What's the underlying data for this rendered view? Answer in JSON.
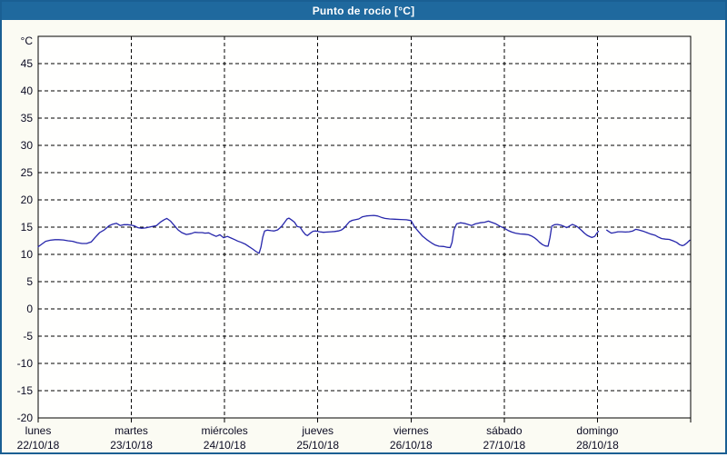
{
  "window": {
    "title": "Punto de rocío [°C]"
  },
  "colors": {
    "frame": "#1a5f93",
    "titlebar_bg": "#1f699e",
    "title_text": "#ffffff",
    "page_bg": "#fbfbf3",
    "plot_bg": "#fffffe",
    "grid": "#000000",
    "axis_text": "#0b0b22",
    "line": "#2626ab"
  },
  "chart_data": {
    "type": "line",
    "title": "Punto de rocío [°C]",
    "unit_label": "°C",
    "ylim": [
      -20,
      50
    ],
    "yticks": [
      45,
      40,
      35,
      30,
      25,
      20,
      15,
      10,
      5,
      0,
      -5,
      -10,
      -15,
      -20
    ],
    "grid": "dashed",
    "legend": "none",
    "x_axis_days": [
      {
        "name": "lunes",
        "date": "22/10/18"
      },
      {
        "name": "martes",
        "date": "23/10/18"
      },
      {
        "name": "miércoles",
        "date": "24/10/18"
      },
      {
        "name": "jueves",
        "date": "25/10/18"
      },
      {
        "name": "viernes",
        "date": "26/10/18"
      },
      {
        "name": "sábado",
        "date": "27/10/18"
      },
      {
        "name": "domingo",
        "date": "28/10/18"
      }
    ],
    "series": [
      {
        "name": "Punto de rocío",
        "x_unit": "days_from_start",
        "points": [
          [
            0.0,
            11.4
          ],
          [
            0.04,
            11.9
          ],
          [
            0.08,
            12.4
          ],
          [
            0.13,
            12.6
          ],
          [
            0.18,
            12.7
          ],
          [
            0.22,
            12.7
          ],
          [
            0.27,
            12.65
          ],
          [
            0.32,
            12.5
          ],
          [
            0.37,
            12.4
          ],
          [
            0.42,
            12.15
          ],
          [
            0.47,
            12.0
          ],
          [
            0.52,
            12.0
          ],
          [
            0.57,
            12.3
          ],
          [
            0.61,
            13.1
          ],
          [
            0.66,
            14.0
          ],
          [
            0.71,
            14.5
          ],
          [
            0.76,
            15.25
          ],
          [
            0.8,
            15.55
          ],
          [
            0.84,
            15.7
          ],
          [
            0.88,
            15.3
          ],
          [
            0.92,
            15.45
          ],
          [
            0.96,
            15.45
          ],
          [
            1.0,
            15.35
          ],
          [
            1.03,
            15.25
          ],
          [
            1.07,
            14.9
          ],
          [
            1.11,
            14.8
          ],
          [
            1.15,
            14.85
          ],
          [
            1.19,
            15.0
          ],
          [
            1.23,
            15.15
          ],
          [
            1.27,
            15.3
          ],
          [
            1.31,
            15.9
          ],
          [
            1.35,
            16.35
          ],
          [
            1.38,
            16.6
          ],
          [
            1.42,
            16.1
          ],
          [
            1.46,
            15.3
          ],
          [
            1.5,
            14.5
          ],
          [
            1.54,
            14.0
          ],
          [
            1.59,
            13.65
          ],
          [
            1.64,
            13.8
          ],
          [
            1.68,
            14.05
          ],
          [
            1.72,
            14.0
          ],
          [
            1.76,
            14.0
          ],
          [
            1.79,
            13.9
          ],
          [
            1.83,
            13.95
          ],
          [
            1.87,
            13.6
          ],
          [
            1.91,
            13.3
          ],
          [
            1.95,
            13.6
          ],
          [
            1.99,
            13.05
          ],
          [
            2.03,
            13.3
          ],
          [
            2.07,
            13.0
          ],
          [
            2.11,
            12.7
          ],
          [
            2.14,
            12.45
          ],
          [
            2.18,
            12.2
          ],
          [
            2.22,
            11.9
          ],
          [
            2.26,
            11.45
          ],
          [
            2.3,
            11.0
          ],
          [
            2.34,
            10.5
          ],
          [
            2.37,
            10.2
          ],
          [
            2.39,
            11.3
          ],
          [
            2.41,
            13.2
          ],
          [
            2.43,
            14.3
          ],
          [
            2.46,
            14.45
          ],
          [
            2.5,
            14.35
          ],
          [
            2.53,
            14.3
          ],
          [
            2.57,
            14.5
          ],
          [
            2.61,
            15.1
          ],
          [
            2.64,
            15.8
          ],
          [
            2.67,
            16.5
          ],
          [
            2.69,
            16.65
          ],
          [
            2.72,
            16.3
          ],
          [
            2.75,
            15.9
          ],
          [
            2.78,
            15.1
          ],
          [
            2.81,
            15.0
          ],
          [
            2.84,
            14.2
          ],
          [
            2.87,
            13.6
          ],
          [
            2.89,
            13.45
          ],
          [
            2.92,
            13.9
          ],
          [
            2.95,
            14.25
          ],
          [
            2.98,
            14.3
          ],
          [
            3.02,
            14.15
          ],
          [
            3.06,
            14.05
          ],
          [
            3.1,
            14.1
          ],
          [
            3.14,
            14.15
          ],
          [
            3.18,
            14.2
          ],
          [
            3.22,
            14.3
          ],
          [
            3.25,
            14.45
          ],
          [
            3.28,
            14.8
          ],
          [
            3.31,
            15.4
          ],
          [
            3.34,
            16.0
          ],
          [
            3.37,
            16.25
          ],
          [
            3.4,
            16.35
          ],
          [
            3.44,
            16.5
          ],
          [
            3.48,
            16.9
          ],
          [
            3.52,
            17.05
          ],
          [
            3.56,
            17.1
          ],
          [
            3.6,
            17.15
          ],
          [
            3.64,
            17.05
          ],
          [
            3.68,
            16.8
          ],
          [
            3.72,
            16.6
          ],
          [
            3.77,
            16.5
          ],
          [
            3.83,
            16.45
          ],
          [
            3.89,
            16.4
          ],
          [
            3.95,
            16.35
          ],
          [
            4.0,
            16.2
          ],
          [
            4.04,
            15.0
          ],
          [
            4.08,
            14.2
          ],
          [
            4.12,
            13.4
          ],
          [
            4.17,
            12.7
          ],
          [
            4.22,
            12.1
          ],
          [
            4.26,
            11.7
          ],
          [
            4.3,
            11.5
          ],
          [
            4.35,
            11.45
          ],
          [
            4.39,
            11.3
          ],
          [
            4.42,
            11.25
          ],
          [
            4.44,
            12.2
          ],
          [
            4.46,
            14.5
          ],
          [
            4.49,
            15.6
          ],
          [
            4.53,
            15.8
          ],
          [
            4.57,
            15.7
          ],
          [
            4.61,
            15.5
          ],
          [
            4.65,
            15.3
          ],
          [
            4.69,
            15.6
          ],
          [
            4.74,
            15.8
          ],
          [
            4.79,
            15.9
          ],
          [
            4.83,
            16.1
          ],
          [
            4.87,
            15.85
          ],
          [
            4.91,
            15.6
          ],
          [
            4.95,
            15.2
          ],
          [
            5.0,
            14.8
          ],
          [
            5.04,
            14.4
          ],
          [
            5.08,
            14.1
          ],
          [
            5.12,
            13.9
          ],
          [
            5.17,
            13.75
          ],
          [
            5.22,
            13.7
          ],
          [
            5.26,
            13.6
          ],
          [
            5.29,
            13.4
          ],
          [
            5.32,
            13.1
          ],
          [
            5.35,
            12.7
          ],
          [
            5.38,
            12.2
          ],
          [
            5.41,
            11.8
          ],
          [
            5.44,
            11.55
          ],
          [
            5.47,
            11.5
          ],
          [
            5.49,
            13.0
          ],
          [
            5.51,
            15.2
          ],
          [
            5.54,
            15.45
          ],
          [
            5.57,
            15.5
          ],
          [
            5.61,
            15.35
          ],
          [
            5.64,
            15.15
          ],
          [
            5.67,
            14.9
          ],
          [
            5.7,
            15.2
          ],
          [
            5.73,
            15.5
          ],
          [
            5.76,
            15.3
          ],
          [
            5.79,
            15.0
          ],
          [
            5.83,
            14.4
          ],
          [
            5.86,
            13.9
          ],
          [
            5.89,
            13.5
          ],
          [
            5.92,
            13.25
          ],
          [
            5.94,
            13.1
          ],
          [
            5.97,
            13.3
          ],
          [
            5.99,
            13.8
          ],
          [
            6.01,
            14.25
          ],
          null,
          [
            6.1,
            14.45
          ],
          [
            6.13,
            14.1
          ],
          [
            6.15,
            13.9
          ],
          [
            6.18,
            14.0
          ],
          [
            6.22,
            14.15
          ],
          [
            6.26,
            14.15
          ],
          [
            6.3,
            14.1
          ],
          [
            6.34,
            14.15
          ],
          [
            6.38,
            14.3
          ],
          [
            6.41,
            14.6
          ],
          [
            6.44,
            14.5
          ],
          [
            6.47,
            14.35
          ],
          [
            6.5,
            14.2
          ],
          [
            6.53,
            14.0
          ],
          [
            6.56,
            13.8
          ],
          [
            6.59,
            13.65
          ],
          [
            6.62,
            13.5
          ],
          [
            6.65,
            13.2
          ],
          [
            6.69,
            12.9
          ],
          [
            6.73,
            12.8
          ],
          [
            6.77,
            12.75
          ],
          [
            6.81,
            12.5
          ],
          [
            6.85,
            12.2
          ],
          [
            6.88,
            11.8
          ],
          [
            6.91,
            11.6
          ],
          [
            6.93,
            11.7
          ],
          [
            6.96,
            12.1
          ],
          [
            6.99,
            12.6
          ]
        ]
      }
    ]
  }
}
